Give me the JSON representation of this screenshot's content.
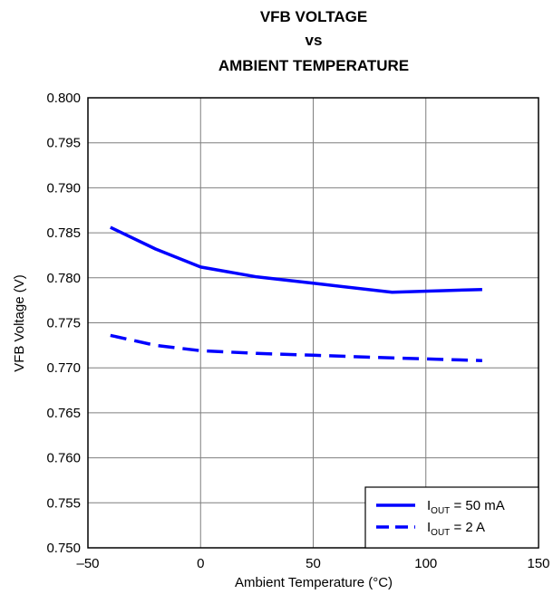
{
  "chart_data": {
    "type": "line",
    "title": [
      "VFB VOLTAGE",
      "vs",
      "AMBIENT TEMPERATURE"
    ],
    "xlabel": "Ambient Temperature (°C)",
    "ylabel": "VFB Voltage (V)",
    "xlim": [
      -50,
      150
    ],
    "ylim": [
      0.75,
      0.8
    ],
    "x_ticks": [
      -50,
      0,
      50,
      100,
      150
    ],
    "x_tick_labels": [
      "–50",
      "0",
      "50",
      "100",
      "150"
    ],
    "y_ticks": [
      0.75,
      0.755,
      0.76,
      0.765,
      0.77,
      0.775,
      0.78,
      0.785,
      0.79,
      0.795,
      0.8
    ],
    "y_tick_labels": [
      "0.750",
      "0.755",
      "0.760",
      "0.765",
      "0.770",
      "0.775",
      "0.780",
      "0.785",
      "0.790",
      "0.795",
      "0.800"
    ],
    "grid": true,
    "legend_position": "bottom-right",
    "series": [
      {
        "name": "I_OUT = 50 mA",
        "legend": {
          "main": "I",
          "sub": "OUT",
          "rest": " = 50 mA"
        },
        "style": "solid",
        "color": "#0000ff",
        "x": [
          -40,
          -20,
          0,
          25,
          50,
          85,
          125
        ],
        "y": [
          0.7856,
          0.7832,
          0.7812,
          0.7801,
          0.7794,
          0.7784,
          0.7787
        ]
      },
      {
        "name": "I_OUT = 2 A",
        "legend": {
          "main": "I",
          "sub": "OUT",
          "rest": " = 2 A"
        },
        "style": "dashed",
        "color": "#0000ff",
        "x": [
          -40,
          -20,
          0,
          25,
          50,
          85,
          125
        ],
        "y": [
          0.7736,
          0.7725,
          0.7719,
          0.7716,
          0.7714,
          0.7711,
          0.7708
        ]
      }
    ]
  }
}
